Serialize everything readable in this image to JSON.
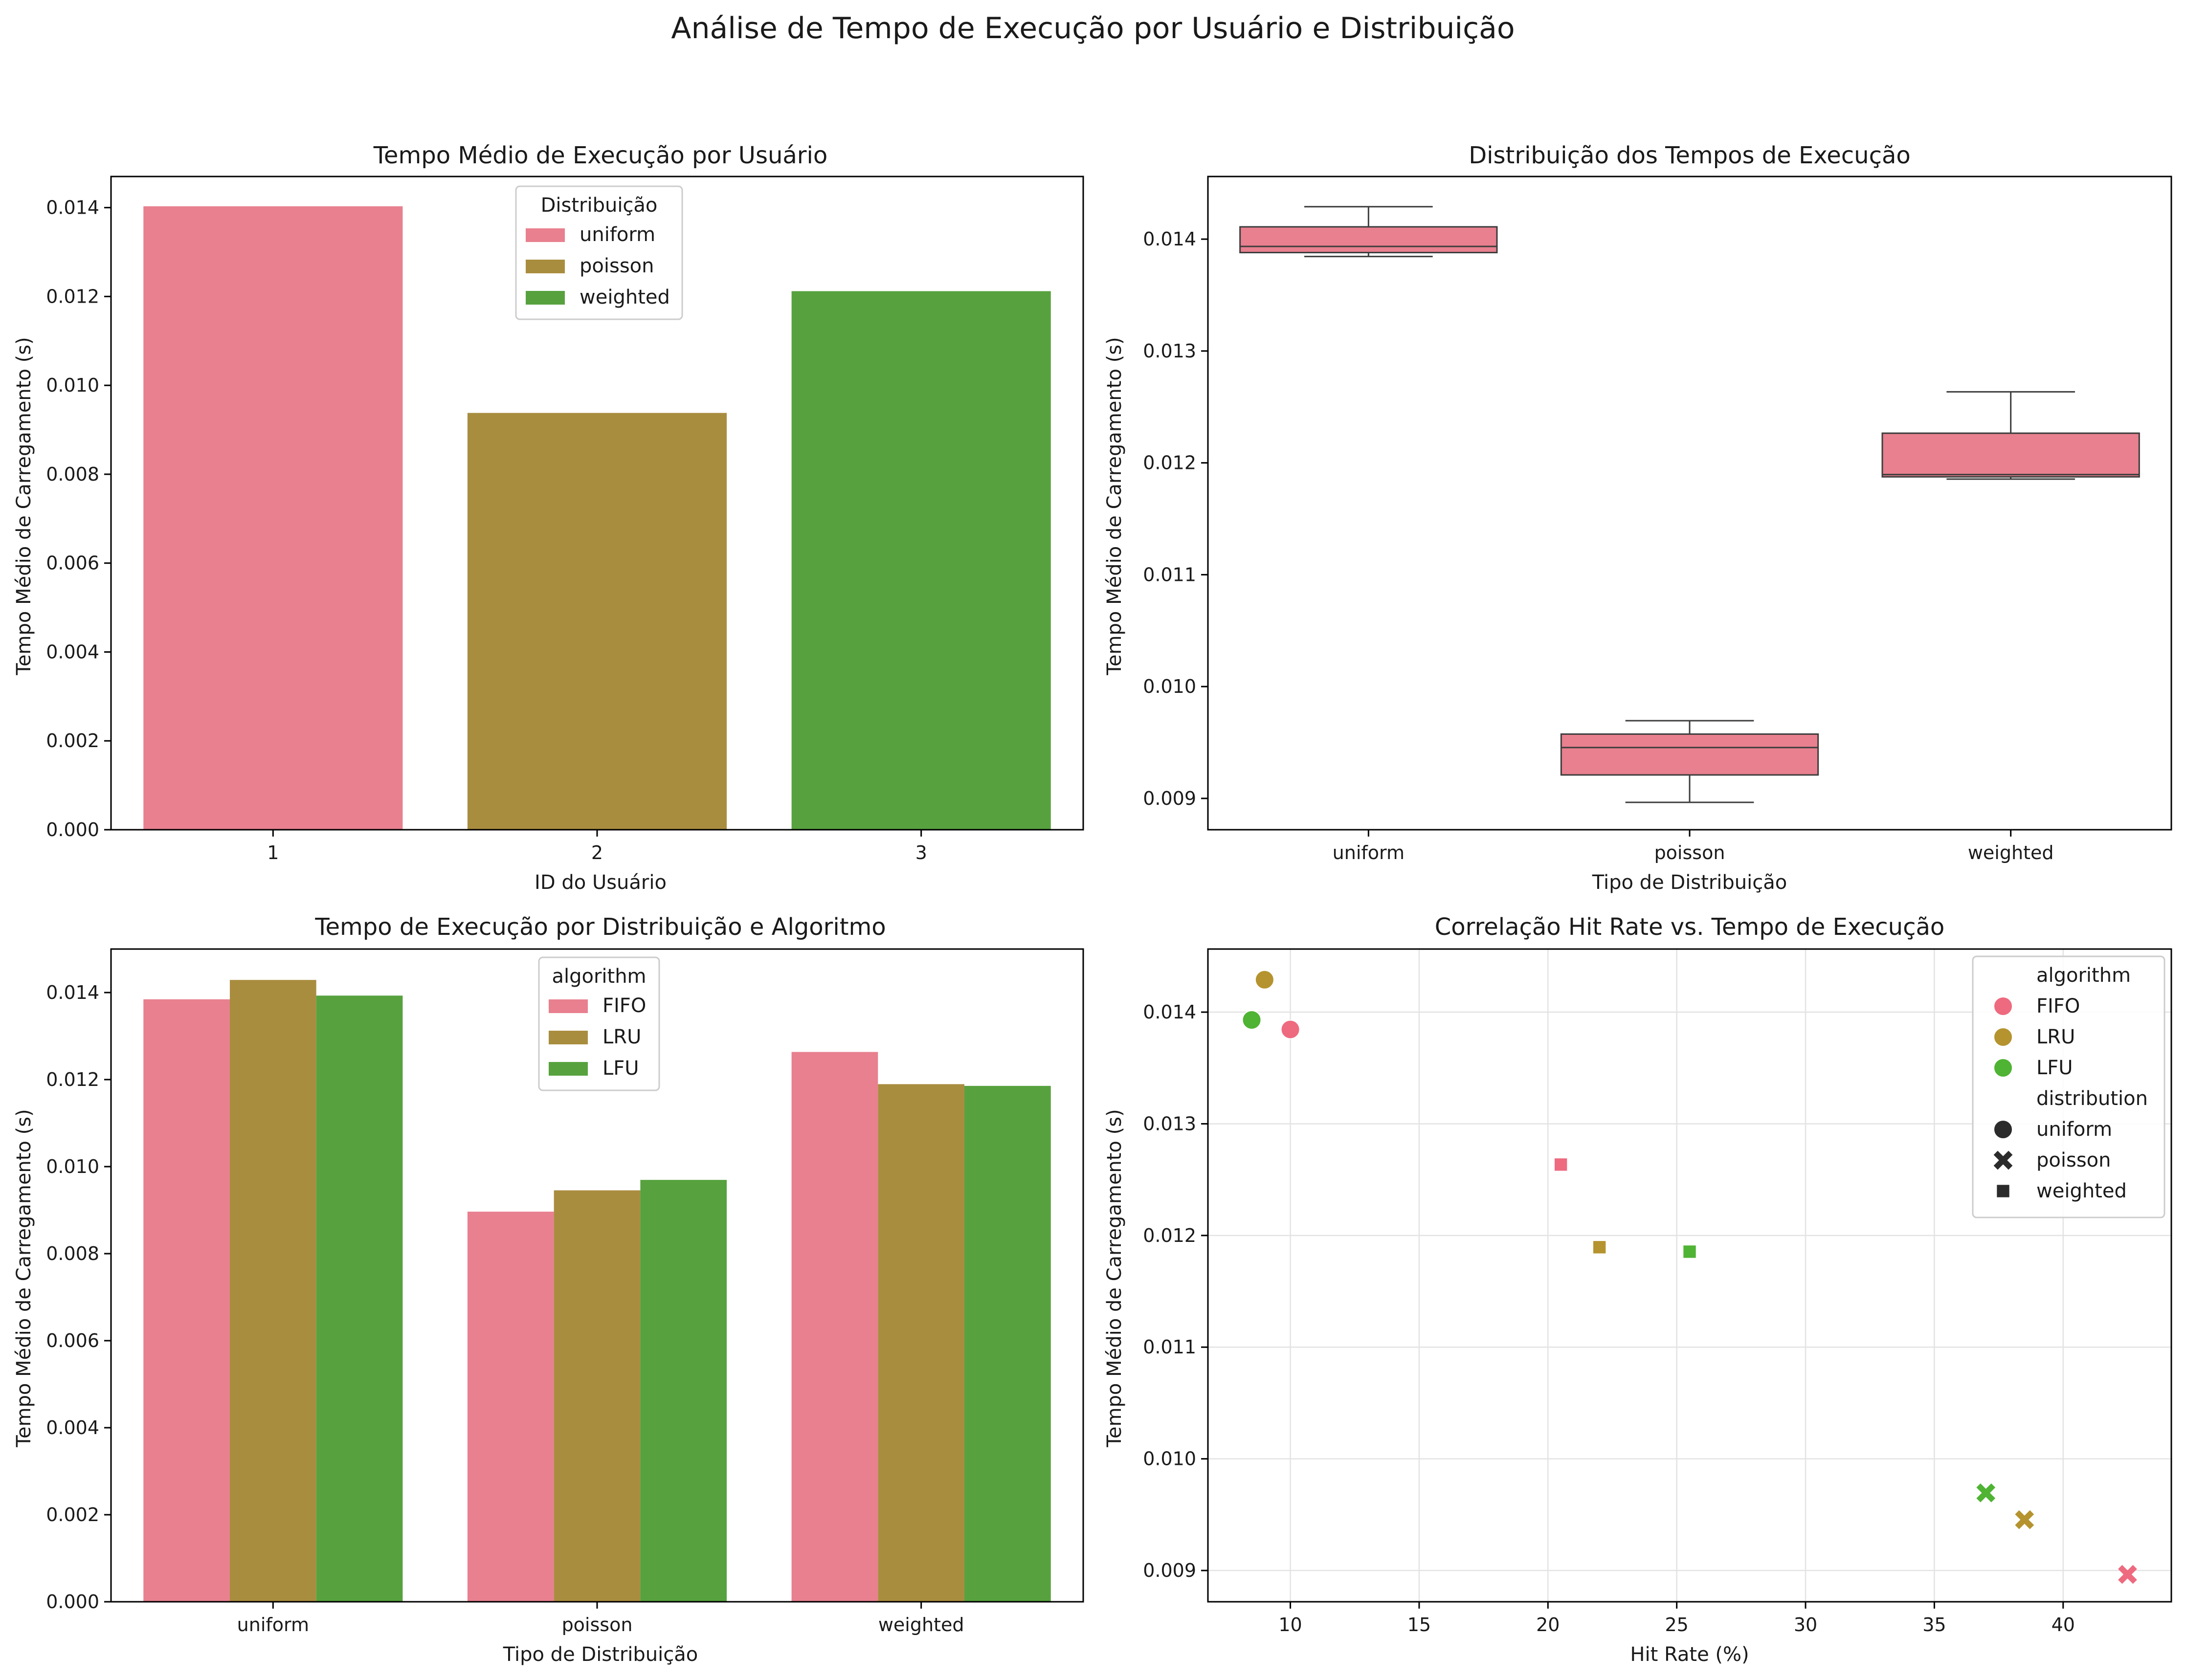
{
  "figure": {
    "title": "Análise de Tempo de Execução por Usuário e Distribuição"
  },
  "colors": {
    "uniform": "#e8808f",
    "poisson": "#a98d3f",
    "weighted": "#57a23f",
    "FIFO": "#e8808f",
    "LRU": "#a98d3f",
    "LFU": "#57a23f",
    "scatter_FIFO": "#ee6a7f",
    "scatter_LRU": "#b5932e",
    "scatter_LFU": "#4fb334",
    "box": "#e8808f"
  },
  "chart_data": [
    {
      "id": "p1",
      "type": "bar",
      "title": "Tempo Médio de Execução por Usuário",
      "xlabel": "ID do Usuário",
      "ylabel": "Tempo Médio de Carregamento (s)",
      "categories": [
        "1",
        "2",
        "3"
      ],
      "values": [
        0.01403,
        0.00938,
        0.01212
      ],
      "bar_series": [
        "uniform",
        "poisson",
        "weighted"
      ],
      "ylim": [
        0,
        0.0147
      ],
      "yticks": [
        "0.000",
        "0.002",
        "0.004",
        "0.006",
        "0.008",
        "0.010",
        "0.012",
        "0.014"
      ],
      "legend": {
        "title": "Distribuição",
        "entries": [
          "uniform",
          "poisson",
          "weighted"
        ],
        "position": "upper-center"
      }
    },
    {
      "id": "p2",
      "type": "box",
      "title": "Distribuição dos Tempos de Execução",
      "xlabel": "Tipo de Distribuição",
      "ylabel": "Tempo Médio de Carregamento (s)",
      "categories": [
        "uniform",
        "poisson",
        "weighted"
      ],
      "boxes": [
        {
          "min": 0.013845,
          "q1": 0.01388,
          "median": 0.013935,
          "q3": 0.01411,
          "max": 0.01429
        },
        {
          "min": 0.008965,
          "q1": 0.00921,
          "median": 0.009455,
          "q3": 0.009575,
          "max": 0.009695
        },
        {
          "min": 0.011855,
          "q1": 0.011875,
          "median": 0.011895,
          "q3": 0.012265,
          "max": 0.012635
        }
      ],
      "ylim": [
        0.00872,
        0.01456
      ],
      "yticks": [
        "0.009",
        "0.010",
        "0.011",
        "0.012",
        "0.013",
        "0.014"
      ]
    },
    {
      "id": "p3",
      "type": "bar",
      "title": "Tempo de Execução por Distribuição e Algoritmo",
      "xlabel": "Tipo de Distribuição",
      "ylabel": "Tempo Médio de Carregamento (s)",
      "categories": [
        "uniform",
        "poisson",
        "weighted"
      ],
      "series": [
        {
          "name": "FIFO",
          "values": [
            0.013845,
            0.008965,
            0.012635
          ]
        },
        {
          "name": "LRU",
          "values": [
            0.01429,
            0.009455,
            0.011895
          ]
        },
        {
          "name": "LFU",
          "values": [
            0.01393,
            0.009695,
            0.011855
          ]
        }
      ],
      "ylim": [
        0,
        0.015
      ],
      "yticks": [
        "0.000",
        "0.002",
        "0.004",
        "0.006",
        "0.008",
        "0.010",
        "0.012",
        "0.014"
      ],
      "legend": {
        "title": "algorithm",
        "entries": [
          "FIFO",
          "LRU",
          "LFU"
        ],
        "position": "upper-center"
      }
    },
    {
      "id": "p4",
      "type": "scatter",
      "title": "Correlação Hit Rate vs. Tempo de Execução",
      "xlabel": "Hit Rate (%)",
      "ylabel": "Tempo Médio de Carregamento (s)",
      "points": [
        {
          "algorithm": "FIFO",
          "distribution": "uniform",
          "x": 10.0,
          "y": 0.013845
        },
        {
          "algorithm": "LRU",
          "distribution": "uniform",
          "x": 9.0,
          "y": 0.01429
        },
        {
          "algorithm": "LFU",
          "distribution": "uniform",
          "x": 8.5,
          "y": 0.01393
        },
        {
          "algorithm": "FIFO",
          "distribution": "weighted",
          "x": 20.5,
          "y": 0.012635
        },
        {
          "algorithm": "LRU",
          "distribution": "weighted",
          "x": 22.0,
          "y": 0.011895
        },
        {
          "algorithm": "LFU",
          "distribution": "weighted",
          "x": 25.5,
          "y": 0.011855
        },
        {
          "algorithm": "LFU",
          "distribution": "poisson",
          "x": 37.0,
          "y": 0.009695
        },
        {
          "algorithm": "LRU",
          "distribution": "poisson",
          "x": 38.5,
          "y": 0.009455
        },
        {
          "algorithm": "FIFO",
          "distribution": "poisson",
          "x": 42.5,
          "y": 0.008965
        }
      ],
      "xlim": [
        6.8,
        44.2
      ],
      "ylim": [
        0.00872,
        0.014565
      ],
      "xticks": [
        10,
        15,
        20,
        25,
        30,
        35,
        40
      ],
      "yticks": [
        "0.009",
        "0.010",
        "0.011",
        "0.012",
        "0.013",
        "0.014"
      ],
      "grid": true,
      "legend": {
        "position": "top-right",
        "hue_title": "algorithm",
        "hue_entries": [
          "FIFO",
          "LRU",
          "LFU"
        ],
        "style_title": "distribution",
        "style_entries": [
          "uniform",
          "poisson",
          "weighted"
        ],
        "style_markers": {
          "uniform": "circle",
          "poisson": "x",
          "weighted": "square"
        }
      }
    }
  ]
}
